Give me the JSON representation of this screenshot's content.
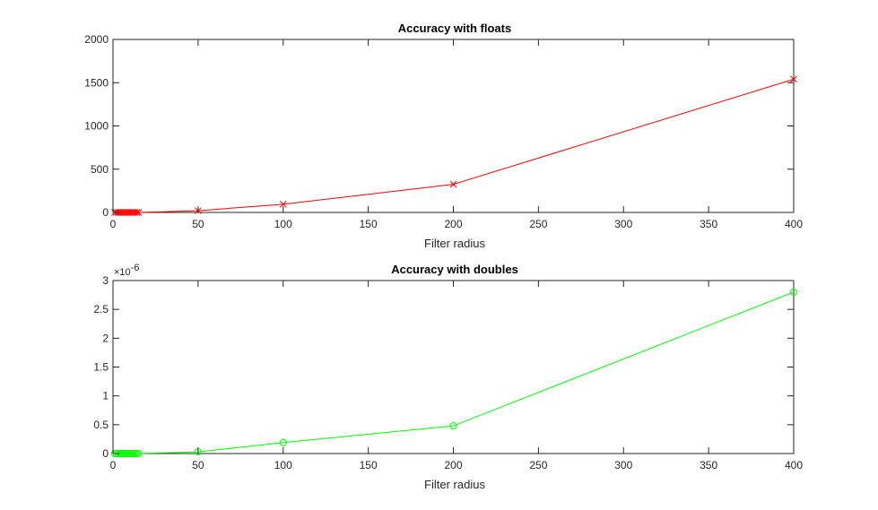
{
  "chart_data": [
    {
      "type": "line",
      "title": "Accuracy with floats",
      "xlabel": "Filter radius",
      "ylabel": "",
      "xlim": [
        0,
        400
      ],
      "ylim": [
        0,
        2000
      ],
      "xticks": [
        0,
        50,
        100,
        150,
        200,
        250,
        300,
        350,
        400
      ],
      "yticks": [
        0,
        500,
        1000,
        1500,
        2000
      ],
      "y_exponent": "",
      "grid": false,
      "series": [
        {
          "color": "#ff0000",
          "marker": "x",
          "x": [
            1,
            2,
            3,
            4,
            5,
            6,
            7,
            8,
            9,
            10,
            11,
            12,
            13,
            14,
            15,
            50,
            100,
            200,
            400
          ],
          "y": [
            0,
            0,
            0,
            0,
            0,
            0,
            0,
            0,
            0,
            0,
            0,
            0,
            0,
            0,
            0,
            20,
            95,
            325,
            1540
          ]
        }
      ]
    },
    {
      "type": "line",
      "title": "Accuracy with doubles",
      "xlabel": "Filter radius",
      "ylabel": "",
      "xlim": [
        0,
        400
      ],
      "ylim": [
        0,
        3
      ],
      "xticks": [
        0,
        50,
        100,
        150,
        200,
        250,
        300,
        350,
        400
      ],
      "yticks": [
        0,
        0.5,
        1,
        1.5,
        2,
        2.5,
        3
      ],
      "y_exponent": "-6",
      "grid": false,
      "series": [
        {
          "color": "#00ff00",
          "marker": "o",
          "x": [
            1,
            2,
            3,
            4,
            5,
            6,
            7,
            8,
            9,
            10,
            11,
            12,
            13,
            14,
            15,
            50,
            100,
            200,
            400
          ],
          "y": [
            0,
            0,
            0,
            0,
            0,
            0,
            0,
            0,
            0,
            0,
            0,
            0,
            0,
            0,
            0,
            0.03,
            0.19,
            0.48,
            2.8
          ]
        }
      ]
    }
  ]
}
